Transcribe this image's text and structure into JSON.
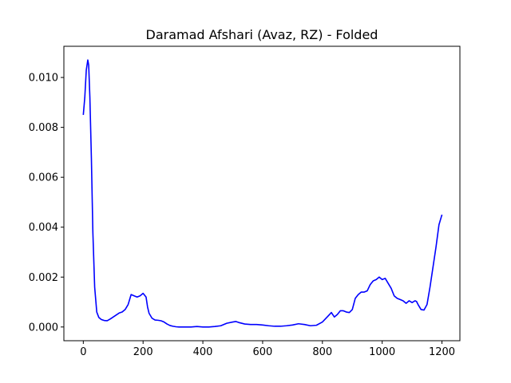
{
  "chart_data": {
    "type": "line",
    "title": "Daramad Afshari (Avaz, RZ) - Folded",
    "xlabel": "",
    "ylabel": "",
    "xlim": [
      -65,
      1260
    ],
    "ylim": [
      -0.00055,
      0.01125
    ],
    "x_ticks": [
      0,
      200,
      400,
      600,
      800,
      1000,
      1200
    ],
    "x_tick_labels": [
      "0",
      "200",
      "400",
      "600",
      "800",
      "1000",
      "1200"
    ],
    "y_ticks": [
      0.0,
      0.002,
      0.004,
      0.006,
      0.008,
      0.01
    ],
    "y_tick_labels": [
      "0.000",
      "0.002",
      "0.004",
      "0.006",
      "0.008",
      "0.010"
    ],
    "grid": false,
    "series": [
      {
        "color": "#0000ff",
        "x": [
          0,
          5,
          10,
          15,
          18,
          22,
          27,
          32,
          38,
          45,
          52,
          60,
          70,
          80,
          90,
          100,
          110,
          120,
          130,
          140,
          150,
          160,
          170,
          180,
          190,
          200,
          210,
          215,
          220,
          230,
          240,
          250,
          260,
          270,
          280,
          290,
          300,
          310,
          320,
          340,
          360,
          380,
          400,
          420,
          440,
          460,
          480,
          500,
          510,
          520,
          540,
          560,
          580,
          600,
          620,
          640,
          660,
          680,
          700,
          720,
          740,
          760,
          780,
          800,
          820,
          830,
          840,
          850,
          860,
          870,
          880,
          890,
          900,
          910,
          920,
          930,
          940,
          950,
          960,
          970,
          980,
          990,
          1000,
          1010,
          1020,
          1030,
          1040,
          1050,
          1060,
          1070,
          1080,
          1090,
          1100,
          1110,
          1115,
          1120,
          1130,
          1140,
          1150,
          1160,
          1170,
          1180,
          1190,
          1200
        ],
        "y": [
          0.0085,
          0.0092,
          0.0103,
          0.0107,
          0.0105,
          0.0092,
          0.0068,
          0.0038,
          0.0016,
          0.0006,
          0.00038,
          0.0003,
          0.00026,
          0.00025,
          0.00032,
          0.0004,
          0.00048,
          0.00056,
          0.0006,
          0.0007,
          0.0009,
          0.0013,
          0.00125,
          0.0012,
          0.00125,
          0.00135,
          0.0012,
          0.0008,
          0.00055,
          0.00035,
          0.00028,
          0.00027,
          0.00025,
          0.0002,
          0.00012,
          6e-05,
          3e-05,
          1e-05,
          0.0,
          0.0,
          0.0,
          2e-05,
          0.0,
          0.0,
          2e-05,
          5e-05,
          0.00015,
          0.0002,
          0.00022,
          0.00018,
          0.00012,
          0.0001,
          0.0001,
          8e-05,
          5e-05,
          3e-05,
          3e-05,
          5e-05,
          8e-05,
          0.00013,
          0.0001,
          5e-05,
          7e-05,
          0.0002,
          0.00045,
          0.00058,
          0.0004,
          0.0005,
          0.00065,
          0.00065,
          0.0006,
          0.00058,
          0.0007,
          0.00115,
          0.0013,
          0.0014,
          0.0014,
          0.00145,
          0.0017,
          0.00185,
          0.0019,
          0.002,
          0.0019,
          0.00195,
          0.00175,
          0.00155,
          0.00125,
          0.00115,
          0.0011,
          0.00105,
          0.00095,
          0.00105,
          0.00098,
          0.00105,
          0.00102,
          0.0009,
          0.0007,
          0.00068,
          0.0009,
          0.0016,
          0.0024,
          0.0032,
          0.0041,
          0.0045
        ]
      }
    ]
  }
}
